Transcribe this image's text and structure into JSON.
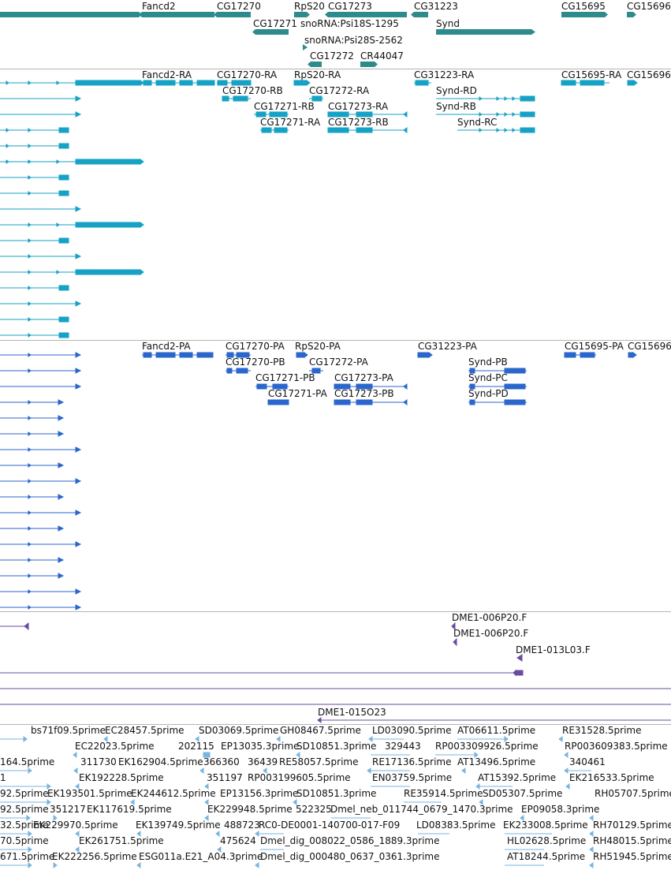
{
  "colors": {
    "gene": "#2e8b8b",
    "mrna": "#16a2c4",
    "protein": "#2a66cc",
    "bac": "#6a4ba0",
    "est": "#78b4de",
    "divider": "#b4b4b4"
  },
  "gene_track": {
    "labels": [
      "Fancd2",
      "CG17270",
      "RpS20",
      "CG17273",
      "CG31223",
      "CG15695",
      "CG15696",
      "CG17271",
      "snoRNA:Psi18S-1295",
      "Synd",
      "snoRNA:Psi28S-2562",
      "CG17272",
      "CR44047"
    ]
  },
  "mrna_track": {
    "labels": [
      "Fancd2-RA",
      "CG17270-RA",
      "RpS20-RA",
      "CG31223-RA",
      "CG15695-RA",
      "CG15696",
      "CG17270-RB",
      "CG17272-RA",
      "Synd-RD",
      "CG17271-RB",
      "CG17273-RA",
      "Synd-RB",
      "CG17271-RA",
      "CG17273-RB",
      "Synd-RC"
    ]
  },
  "protein_track": {
    "labels": [
      "Fancd2-PA",
      "CG17270-PA",
      "RpS20-PA",
      "CG31223-PA",
      "CG15695-PA",
      "CG15696",
      "CG17270-PB",
      "CG17272-PA",
      "Synd-PB",
      "CG17271-PB",
      "CG17273-PA",
      "Synd-PC",
      "CG17271-PA",
      "CG17273-PB",
      "Synd-PD"
    ]
  },
  "bac_track": {
    "labels": [
      "DME1-006P20.F",
      "DME1-006P20.F",
      "DME1-013L03.F",
      "DME1-015O23"
    ]
  },
  "est_track": {
    "labels": [
      "bs71f09.5prime",
      "EC28457.5prime",
      "SD03069.5prime",
      "GH08467.5prime",
      "LD03090.5prime",
      "AT06611.5prime",
      "RE31528.5prime",
      "EC22023.5prime",
      "202115",
      "EP13035.3prime",
      "SD10851.3prime",
      "329443",
      "RP003309926.5prime",
      "RP003609383.5prime",
      "164.5prime",
      "311730",
      "EK162904.5prime",
      "366360",
      "36439",
      "RE58057.5prime",
      "RE17136.5prime",
      "AT13496.5prime",
      "340461",
      "1",
      "EK192228.5prime",
      "351197",
      "RP003199605.5prime",
      "EN03759.5prime",
      "AT15392.5prime",
      "EK216533.5prime",
      "92.5prime",
      "EK193501.5prime",
      "EK244612.5prime",
      "EP13156.3prime",
      "SD10851.3prime",
      "RE35914.5prime",
      "SD05307.5prime",
      "RH05707.5prime",
      "92.5prime",
      "351217",
      "EK117619.5prime",
      "EK229948.5prime",
      "522325",
      "Dmel_neb_011744_0679_1470.3prime",
      "EP09058.3prime",
      "32.5prime",
      "EK229970.5prime",
      "EK139749.5prime",
      "488723",
      "RC0-DE0001-140700-017-F09",
      "LD08383.5prime",
      "EK233008.5prime",
      "RH70129.5prime",
      "70.5prime",
      "EK261751.5prime",
      "475624",
      "Dmel_dig_008022_0586_1889.3prime",
      "HL02628.5prime",
      "RH48015.5prime",
      "671.5prime",
      "EK222256.5prime",
      "ESG011a.E21_A04.3prime",
      "Dmel_dig_000480_0637_0361.3prime",
      "AT18244.5prime",
      "RH51945.5prime"
    ]
  }
}
